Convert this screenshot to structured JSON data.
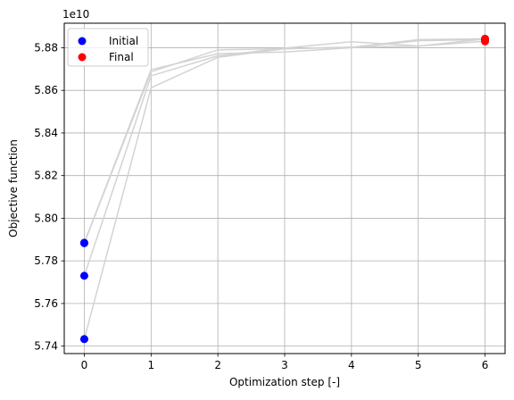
{
  "chart_data": {
    "type": "scatter",
    "xlabel": "Optimization step [-]",
    "ylabel": "Objective function",
    "y_offset_label": "1e10",
    "xlim": [
      -0.3,
      6.3
    ],
    "ylim": [
      5.7365,
      5.8915
    ],
    "x_ticks": [
      0,
      1,
      2,
      3,
      4,
      5,
      6
    ],
    "y_ticks": [
      5.74,
      5.76,
      5.78,
      5.8,
      5.82,
      5.84,
      5.86,
      5.88
    ],
    "y_tick_labels": [
      "5.74",
      "5.76",
      "5.78",
      "5.80",
      "5.82",
      "5.84",
      "5.86",
      "5.88"
    ],
    "grid": true,
    "legend_position": "top-left",
    "trajectories_color": "#d3d3d3",
    "trajectories": [
      {
        "x": [
          0,
          1,
          2,
          3,
          4,
          5,
          6
        ],
        "y": [
          5.7433,
          5.8612,
          5.8755,
          5.8795,
          5.8803,
          5.8807,
          5.8841
        ]
      },
      {
        "x": [
          0,
          1,
          2,
          3,
          4,
          5,
          6
        ],
        "y": [
          5.773,
          5.8668,
          5.8762,
          5.8798,
          5.8828,
          5.8808,
          5.883
        ]
      },
      {
        "x": [
          0,
          1,
          2,
          3,
          4,
          5,
          6
        ],
        "y": [
          5.7883,
          5.8687,
          5.879,
          5.8795,
          5.8802,
          5.8838,
          5.8842
        ]
      },
      {
        "x": [
          0,
          1,
          2,
          3,
          4,
          5,
          6
        ],
        "y": [
          5.7885,
          5.8697,
          5.8772,
          5.878,
          5.88,
          5.8833,
          5.8838
        ]
      }
    ],
    "series": [
      {
        "name": "Initial",
        "color": "#0000ff",
        "x": [
          0,
          0,
          0,
          0
        ],
        "y": [
          5.7433,
          5.773,
          5.7883,
          5.7885
        ]
      },
      {
        "name": "Final",
        "color": "#ff0000",
        "x": [
          6,
          6,
          6,
          6
        ],
        "y": [
          5.8841,
          5.883,
          5.8842,
          5.8838
        ]
      }
    ]
  }
}
